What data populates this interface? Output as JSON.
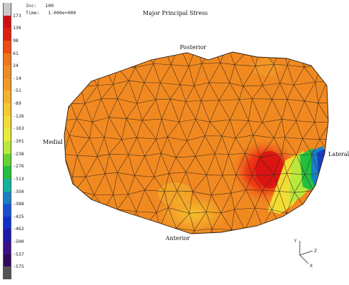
{
  "header": {
    "inc_label": "Inc:",
    "inc_value": "100",
    "time_label": "Time:",
    "time_value": "1.000e+000"
  },
  "title": "Major Principal Stress",
  "legend": {
    "values": [
      "173",
      "136",
      "98",
      "61",
      "24",
      "-14",
      "-51",
      "-89",
      "-126",
      "-163",
      "-201",
      "-238",
      "-276",
      "-313",
      "-350",
      "-388",
      "-425",
      "-462",
      "-500",
      "-537",
      "-575"
    ],
    "colors": [
      "#c8c8c8",
      "#d01010",
      "#e01e10",
      "#ee4a12",
      "#f0761c",
      "#f08a22",
      "#f29a28",
      "#f4b22c",
      "#f6c832",
      "#f2dc34",
      "#e6ec3a",
      "#b8e83c",
      "#66d236",
      "#22c040",
      "#14b49c",
      "#1880c4",
      "#1650d0",
      "#1030c8",
      "#1c1aa8",
      "#3a1286",
      "#300a5e",
      "#545454"
    ]
  },
  "labels": {
    "posterior": "Posterior",
    "anterior": "Anterior",
    "medial": "Medial",
    "lateral": "Lateral"
  },
  "axes": {
    "y": "Y",
    "z": "Z",
    "x": "X"
  }
}
